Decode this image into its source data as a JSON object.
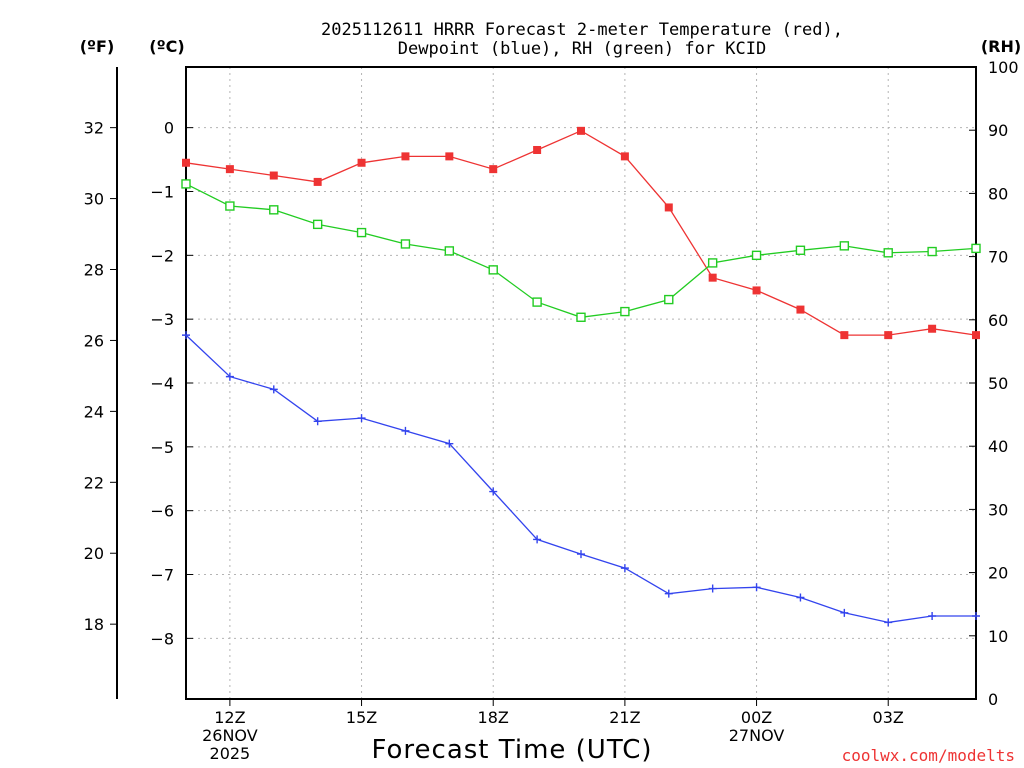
{
  "colors": {
    "temperature": "#ee3333",
    "dewpoint": "#3344ee",
    "rh": "#22cc22",
    "credit": "#ee3333"
  },
  "chart_data": {
    "type": "line",
    "title": [
      "2025112611 HRRR Forecast 2-meter Temperature (red),",
      "Dewpoint (blue), RH (green) for KCID"
    ],
    "xlabel": "Forecast Time (UTC)",
    "credit": "coolwx.com/modelts",
    "x_hours": [
      11,
      12,
      13,
      14,
      15,
      16,
      17,
      18,
      19,
      20,
      21,
      22,
      23,
      24,
      25,
      26,
      27,
      28,
      29
    ],
    "xlim": [
      11,
      29
    ],
    "x_ticks": [
      {
        "hour": 12,
        "label": "12Z",
        "sub": [
          "26NOV",
          "2025"
        ]
      },
      {
        "hour": 15,
        "label": "15Z",
        "sub": []
      },
      {
        "hour": 18,
        "label": "18Z",
        "sub": []
      },
      {
        "hour": 21,
        "label": "21Z",
        "sub": []
      },
      {
        "hour": 24,
        "label": "00Z",
        "sub": [
          "27NOV"
        ]
      },
      {
        "hour": 27,
        "label": "03Z",
        "sub": []
      }
    ],
    "axes": {
      "fahrenheit": {
        "unit_label": "(ºF)",
        "ticks": [
          18,
          20,
          22,
          24,
          26,
          28,
          30,
          32
        ]
      },
      "celsius": {
        "unit_label": "(ºC)",
        "ylim": [
          -8.95,
          0.95
        ],
        "ticks": [
          "0",
          "−1",
          "−2",
          "−3",
          "−4",
          "−5",
          "−6",
          "−7",
          "−8"
        ]
      },
      "rh": {
        "unit_label": "(RH)",
        "ylim": [
          0,
          100
        ],
        "ticks": [
          0,
          10,
          20,
          30,
          40,
          50,
          60,
          70,
          80,
          90,
          100
        ]
      }
    },
    "series": [
      {
        "name": "Temperature",
        "units": "°C",
        "marker": "filled-square",
        "values": [
          -0.55,
          -0.65,
          -0.75,
          -0.85,
          -0.55,
          -0.45,
          -0.45,
          -0.65,
          -0.35,
          -0.05,
          -0.45,
          -1.25,
          -2.35,
          -2.55,
          -2.85,
          -3.25,
          -3.25,
          -3.15,
          -3.25
        ]
      },
      {
        "name": "Dewpoint",
        "units": "°C",
        "marker": "plus",
        "values": [
          -3.25,
          -3.9,
          -4.1,
          -4.6,
          -4.55,
          -4.75,
          -4.95,
          -5.7,
          -6.45,
          -6.68,
          -6.9,
          -7.3,
          -7.22,
          -7.2,
          -7.36,
          -7.6,
          -7.75,
          -7.65,
          -7.65
        ]
      },
      {
        "name": "RH",
        "units": "%",
        "marker": "open-square",
        "values": [
          81.5,
          78,
          77.4,
          75.1,
          73.8,
          72,
          70.9,
          67.9,
          62.8,
          60.4,
          61.3,
          63.2,
          69,
          70.2,
          71,
          71.7,
          70.6,
          70.8,
          71.3
        ]
      }
    ]
  }
}
